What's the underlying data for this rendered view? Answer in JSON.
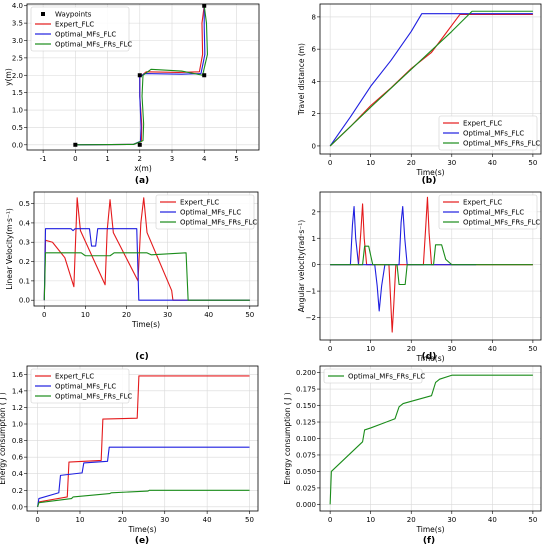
{
  "colors": {
    "expert": "#e41a1c",
    "mfs": "#1f1fe0",
    "mfs_frs": "#1a8c1a",
    "waypoint": "#000000",
    "grid": "#d9d9d9"
  },
  "chart_data": [
    {
      "id": "a",
      "type": "line",
      "caption": "(a)",
      "xlabel": "x(m)",
      "ylabel": "y(m)",
      "xlim": [
        -1.5,
        5.7
      ],
      "ylim": [
        -0.15,
        4.05
      ],
      "xticks": [
        "-1",
        "0",
        "1",
        "2",
        "3",
        "4",
        "5"
      ],
      "xtick_values": [
        -1,
        0,
        1,
        2,
        3,
        4,
        5
      ],
      "yticks": [
        "0.0",
        "0.5",
        "1.0",
        "1.5",
        "2.0",
        "2.5",
        "3.0",
        "3.5",
        "4.0"
      ],
      "ytick_values": [
        0,
        0.5,
        1,
        1.5,
        2,
        2.5,
        3,
        3.5,
        4
      ],
      "grid": true,
      "legend_position": "top-left",
      "waypoints": {
        "name": "Waypoints",
        "x": [
          0,
          2,
          2,
          4,
          4
        ],
        "y": [
          0,
          0,
          2,
          2,
          4
        ]
      },
      "series": [
        {
          "name": "Expert_FLC",
          "color_key": "expert",
          "x": [
            0,
            1.8,
            2.05,
            2.06,
            2.0,
            2.0,
            2.2,
            3.2,
            3.85,
            3.95,
            3.93,
            4.0
          ],
          "y": [
            0,
            0.01,
            0.1,
            0.6,
            1.4,
            1.95,
            2.1,
            2.08,
            2.1,
            2.6,
            3.5,
            4.0
          ]
        },
        {
          "name": "Optimal_MFs_FLC",
          "color_key": "mfs",
          "x": [
            0,
            1.8,
            2.02,
            2.04,
            2.0,
            2.0,
            2.15,
            3.3,
            3.9,
            4.02,
            4.0,
            4.0
          ],
          "y": [
            0,
            0.01,
            0.1,
            0.5,
            1.4,
            1.95,
            2.05,
            2.03,
            2.05,
            2.6,
            3.4,
            4.0
          ]
        },
        {
          "name": "Optimal_MFs_FRs_FLC",
          "color_key": "mfs_frs",
          "x": [
            0,
            1.8,
            2.1,
            2.12,
            2.07,
            2.1,
            2.35,
            3.3,
            3.95,
            4.1,
            4.07,
            4.0
          ],
          "y": [
            0,
            0.01,
            0.12,
            0.6,
            1.4,
            2.0,
            2.17,
            2.12,
            2.0,
            2.6,
            3.5,
            4.0
          ]
        }
      ]
    },
    {
      "id": "b",
      "type": "line",
      "caption": "(b)",
      "xlabel": "Time(s)",
      "ylabel": "Travel distance (m)",
      "xlim": [
        -2.5,
        52
      ],
      "ylim": [
        -0.5,
        8.8
      ],
      "xticks": [
        "0",
        "10",
        "20",
        "30",
        "40",
        "50"
      ],
      "xtick_values": [
        0,
        10,
        20,
        30,
        40,
        50
      ],
      "yticks": [
        "0",
        "2",
        "4",
        "6",
        "8"
      ],
      "ytick_values": [
        0,
        2,
        4,
        6,
        8
      ],
      "grid": true,
      "legend_position": "bottom-right",
      "series": [
        {
          "name": "Expert_FLC",
          "color_key": "expert",
          "x": [
            0,
            5,
            10,
            15,
            20,
            25,
            28,
            32,
            50
          ],
          "y": [
            0,
            1.2,
            2.5,
            3.6,
            4.8,
            5.8,
            6.8,
            8.15,
            8.15
          ]
        },
        {
          "name": "Optimal_MFs_FLC",
          "color_key": "mfs",
          "x": [
            0,
            5,
            10,
            15,
            20,
            22.6,
            50
          ],
          "y": [
            0,
            1.8,
            3.7,
            5.3,
            7.1,
            8.2,
            8.2
          ]
        },
        {
          "name": "Optimal_MFs_FRs_FLC",
          "color_key": "mfs_frs",
          "x": [
            0,
            10,
            20,
            30,
            35,
            50
          ],
          "y": [
            0,
            2.4,
            4.75,
            7.1,
            8.35,
            8.35
          ]
        }
      ]
    },
    {
      "id": "c",
      "type": "line",
      "caption": "(c)",
      "xlabel": "Time(s)",
      "ylabel": "Linear Velocity(m·s⁻¹)",
      "xlim": [
        -2.5,
        52
      ],
      "ylim": [
        -0.03,
        0.56
      ],
      "xticks": [
        "0",
        "10",
        "20",
        "30",
        "40",
        "50"
      ],
      "xtick_values": [
        0,
        10,
        20,
        30,
        40,
        50
      ],
      "yticks": [
        "0.0",
        "0.1",
        "0.2",
        "0.3",
        "0.4",
        "0.5"
      ],
      "ytick_values": [
        0,
        0.1,
        0.2,
        0.3,
        0.4,
        0.5
      ],
      "grid": true,
      "legend_position": "top-right",
      "series": [
        {
          "name": "Expert_FLC",
          "color_key": "expert",
          "x": [
            0,
            0.3,
            2,
            5,
            7.2,
            8,
            8.8,
            14.8,
            15.3,
            16,
            16.8,
            22.8,
            23.5,
            24.2,
            25,
            31,
            31.3,
            50
          ],
          "y": [
            0,
            0.31,
            0.3,
            0.22,
            0.07,
            0.53,
            0.36,
            0.08,
            0.36,
            0.52,
            0.35,
            0.1,
            0.4,
            0.53,
            0.35,
            0.05,
            0,
            0
          ]
        },
        {
          "name": "Optimal_MFs_FLC",
          "color_key": "mfs",
          "x": [
            0,
            0.3,
            6.5,
            7,
            7.5,
            11,
            11.5,
            12.5,
            13,
            22.5,
            23,
            50
          ],
          "y": [
            0,
            0.37,
            0.37,
            0.36,
            0.37,
            0.37,
            0.28,
            0.28,
            0.37,
            0.37,
            0,
            0
          ]
        },
        {
          "name": "Optimal_MFs_FRs_FLC",
          "color_key": "mfs_frs",
          "x": [
            0,
            0.3,
            9,
            10,
            16,
            17,
            25,
            26,
            34.5,
            35,
            50
          ],
          "y": [
            0,
            0.245,
            0.245,
            0.23,
            0.23,
            0.245,
            0.245,
            0.235,
            0.245,
            0,
            0
          ]
        }
      ]
    },
    {
      "id": "d",
      "type": "line",
      "caption": "(d)",
      "xlabel": "Time(s)",
      "ylabel": "Angular velocity(rad·s⁻¹)",
      "xlim": [
        -2.5,
        52
      ],
      "ylim": [
        -2.85,
        2.75
      ],
      "xticks": [
        "0",
        "10",
        "20",
        "30",
        "40",
        "50"
      ],
      "xtick_values": [
        0,
        10,
        20,
        30,
        40,
        50
      ],
      "yticks": [
        "−2",
        "−1",
        "0",
        "1",
        "2"
      ],
      "ytick_values": [
        -2,
        -1,
        0,
        1,
        2
      ],
      "grid": true,
      "legend_position": "top-right",
      "series": [
        {
          "name": "Expert_FLC",
          "color_key": "expert",
          "x": [
            0,
            7,
            7.6,
            8,
            8.4,
            9,
            14.5,
            15.3,
            15.7,
            16.2,
            23,
            23.6,
            24,
            24.4,
            25,
            50
          ],
          "y": [
            0,
            0,
            1.3,
            2.3,
            1.0,
            0,
            0,
            -2.55,
            -1.5,
            0,
            0,
            1.5,
            2.55,
            1.2,
            0,
            0
          ]
        },
        {
          "name": "Optimal_MFs_FLC",
          "color_key": "mfs",
          "x": [
            0,
            5,
            5.5,
            5.9,
            6.3,
            7,
            11,
            11.6,
            12.1,
            12.7,
            13.5,
            17,
            17.5,
            17.9,
            18.4,
            19,
            36
          ],
          "y": [
            0,
            0,
            1.5,
            2.2,
            1.0,
            0,
            0,
            -0.8,
            -1.75,
            -0.8,
            0,
            0,
            1.6,
            2.2,
            1.0,
            0,
            0
          ]
        },
        {
          "name": "Optimal_MFs_FRs_FLC",
          "color_key": "mfs_frs",
          "x": [
            0,
            8,
            8.5,
            9.5,
            10.5,
            11,
            16.5,
            17,
            18.5,
            19,
            25.5,
            26,
            27.5,
            28.5,
            30,
            50
          ],
          "y": [
            0,
            0,
            0.7,
            0.7,
            0,
            0,
            0,
            -0.75,
            -0.75,
            0,
            0,
            0.75,
            0.75,
            0.2,
            0,
            0
          ]
        }
      ]
    },
    {
      "id": "e",
      "type": "line",
      "caption": "(e)",
      "xlabel": "Time(s)",
      "ylabel": "Energy consumption ( J )",
      "xlim": [
        -2.5,
        52
      ],
      "ylim": [
        -0.05,
        1.7
      ],
      "xticks": [
        "0",
        "10",
        "20",
        "30",
        "40",
        "50"
      ],
      "xtick_values": [
        0,
        10,
        20,
        30,
        40,
        50
      ],
      "yticks": [
        "0.0",
        "0.2",
        "0.4",
        "0.6",
        "0.8",
        "1.0",
        "1.2",
        "1.4",
        "1.6"
      ],
      "ytick_values": [
        0,
        0.2,
        0.4,
        0.6,
        0.8,
        1.0,
        1.2,
        1.4,
        1.6
      ],
      "grid": true,
      "legend_position": "top-left",
      "series": [
        {
          "name": "Expert_FLC",
          "color_key": "expert",
          "x": [
            0,
            0.3,
            7,
            7.4,
            15,
            15.4,
            23.5,
            23.9,
            50
          ],
          "y": [
            0,
            0.06,
            0.12,
            0.54,
            0.56,
            1.06,
            1.07,
            1.58,
            1.58
          ]
        },
        {
          "name": "Optimal_MFs_FLC",
          "color_key": "mfs",
          "x": [
            0,
            0.3,
            5,
            5.4,
            10.5,
            10.9,
            16.5,
            16.9,
            50
          ],
          "y": [
            0,
            0.1,
            0.17,
            0.38,
            0.41,
            0.53,
            0.55,
            0.72,
            0.72
          ]
        },
        {
          "name": "Optimal_MFs_FRs_FLC",
          "color_key": "mfs_frs",
          "x": [
            0,
            0.3,
            8,
            8.4,
            17,
            17.4,
            26,
            26.4,
            50
          ],
          "y": [
            0,
            0.05,
            0.1,
            0.12,
            0.16,
            0.17,
            0.19,
            0.2,
            0.2
          ]
        }
      ]
    },
    {
      "id": "f",
      "type": "line",
      "caption": "(f)",
      "xlabel": "Time(s)",
      "ylabel": "Energy consumption ( J )",
      "xlim": [
        -2.5,
        52
      ],
      "ylim": [
        -0.01,
        0.21
      ],
      "xticks": [
        "0",
        "10",
        "20",
        "30",
        "40",
        "50"
      ],
      "xtick_values": [
        0,
        10,
        20,
        30,
        40,
        50
      ],
      "yticks": [
        "0.000",
        "0.025",
        "0.050",
        "0.075",
        "0.100",
        "0.125",
        "0.150",
        "0.175",
        "0.200"
      ],
      "ytick_values": [
        0,
        0.025,
        0.05,
        0.075,
        0.1,
        0.125,
        0.15,
        0.175,
        0.2
      ],
      "grid": true,
      "legend_position": "top-left",
      "series": [
        {
          "name": "Optimal_MFs_FRs_FLC",
          "color_key": "mfs_frs",
          "x": [
            0,
            0.3,
            8,
            8.5,
            10,
            16,
            17,
            18,
            25,
            26,
            27,
            30,
            50
          ],
          "y": [
            0,
            0.05,
            0.095,
            0.113,
            0.116,
            0.13,
            0.148,
            0.153,
            0.165,
            0.185,
            0.19,
            0.196,
            0.196
          ]
        }
      ]
    }
  ]
}
